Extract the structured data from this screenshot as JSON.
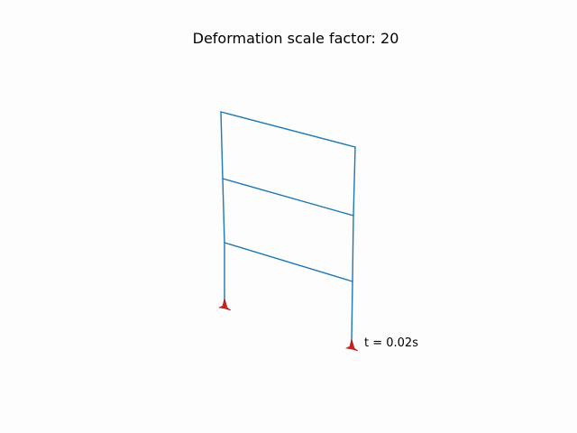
{
  "figure": {
    "title": "Deformation scale factor: 20",
    "time_label": "t = 0.02s",
    "member_color": "#1f77b4",
    "support_color": "#d62728"
  }
}
